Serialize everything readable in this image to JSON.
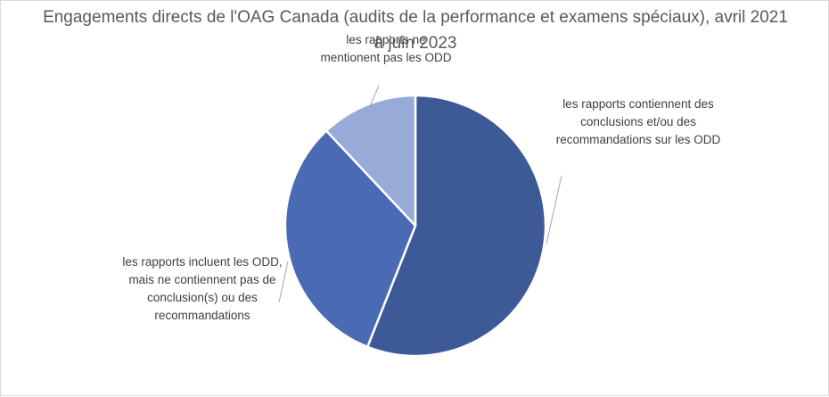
{
  "chart_data": {
    "type": "pie",
    "title": "Engagements directs de l'OAG Canada (audits de la performance et examens spéciaux), avril 2021 à juin 2023",
    "categories": [
      "les rapports contiennent des conclusions et/ou des recommandations sur les ODD",
      "les rapports incluent les ODD, mais ne contiennent pas de conclusion(s) ou des recommandations",
      "les rapports ne mentionent pas les ODD"
    ],
    "values": [
      56,
      32,
      12
    ],
    "colors": [
      "#3e5a96",
      "#4a6ab4",
      "#97aad8"
    ],
    "legend": "none",
    "data_labels": "category names"
  }
}
